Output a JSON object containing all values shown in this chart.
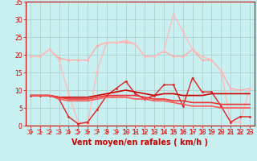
{
  "background_color": "#c8f0f0",
  "grid_color": "#b0c8c8",
  "xlim": [
    -0.5,
    23.5
  ],
  "ylim": [
    0,
    35
  ],
  "yticks": [
    0,
    5,
    10,
    15,
    20,
    25,
    30,
    35
  ],
  "xticks": [
    0,
    1,
    2,
    3,
    4,
    5,
    6,
    7,
    8,
    9,
    10,
    11,
    12,
    13,
    14,
    15,
    16,
    17,
    18,
    19,
    20,
    21,
    22,
    23
  ],
  "x": [
    0,
    1,
    2,
    3,
    4,
    5,
    6,
    7,
    8,
    9,
    10,
    11,
    12,
    13,
    14,
    15,
    16,
    17,
    18,
    19,
    20,
    21,
    22,
    23
  ],
  "series": [
    {
      "y": [
        19.5,
        19.5,
        21.5,
        19.0,
        18.5,
        18.5,
        18.5,
        22.5,
        23.5,
        23.5,
        23.5,
        23.0,
        19.5,
        19.5,
        21.0,
        19.5,
        19.5,
        21.5,
        18.5,
        18.5,
        15.5,
        10.5,
        10.0,
        10.5
      ],
      "color": "#ffaaaa",
      "linewidth": 1.0,
      "marker": "o",
      "markersize": 2.0
    },
    {
      "y": [
        19.5,
        19.5,
        21.5,
        18.5,
        9.0,
        1.0,
        0.5,
        15.5,
        23.5,
        23.5,
        24.0,
        23.0,
        19.5,
        19.5,
        21.0,
        31.5,
        26.5,
        21.5,
        19.5,
        18.5,
        15.5,
        1.0,
        1.0,
        10.5
      ],
      "color": "#ffbbbb",
      "linewidth": 1.0,
      "marker": "o",
      "markersize": 2.0
    },
    {
      "y": [
        8.5,
        8.5,
        8.5,
        7.5,
        2.5,
        0.5,
        1.0,
        4.5,
        8.5,
        10.5,
        12.5,
        9.0,
        7.5,
        8.5,
        11.5,
        11.5,
        5.5,
        13.5,
        9.5,
        9.5,
        5.5,
        1.0,
        2.5,
        2.5
      ],
      "color": "#dd2222",
      "linewidth": 1.0,
      "marker": "o",
      "markersize": 2.0
    },
    {
      "y": [
        8.5,
        8.5,
        8.5,
        8.0,
        8.0,
        8.0,
        8.0,
        8.5,
        9.0,
        9.5,
        10.0,
        9.5,
        9.0,
        8.5,
        9.0,
        9.0,
        8.5,
        8.5,
        8.5,
        9.0,
        9.0,
        9.0,
        9.0,
        9.0
      ],
      "color": "#cc0000",
      "linewidth": 1.2,
      "marker": null,
      "markersize": 0
    },
    {
      "y": [
        8.5,
        8.5,
        8.5,
        8.0,
        7.5,
        7.5,
        7.5,
        8.0,
        8.5,
        8.5,
        8.5,
        8.5,
        8.0,
        7.5,
        7.5,
        7.0,
        7.0,
        6.5,
        6.5,
        6.5,
        6.0,
        6.0,
        6.0,
        6.0
      ],
      "color": "#ee3333",
      "linewidth": 1.2,
      "marker": null,
      "markersize": 0
    },
    {
      "y": [
        8.5,
        8.5,
        8.5,
        7.5,
        7.0,
        7.0,
        7.0,
        7.5,
        8.0,
        8.0,
        8.0,
        7.5,
        7.5,
        7.0,
        7.0,
        6.5,
        6.0,
        5.5,
        5.5,
        5.5,
        5.0,
        5.0,
        5.0,
        5.0
      ],
      "color": "#ff5555",
      "linewidth": 1.2,
      "marker": null,
      "markersize": 0
    }
  ],
  "arrow_color": "#dd4444",
  "tick_color": "#cc0000",
  "tick_fontsize": 5.5,
  "xlabel": "Vent moyen/en rafales ( km/h )",
  "xlabel_fontsize": 7,
  "xlabel_color": "#cc0000",
  "spine_color": "#cc0000"
}
